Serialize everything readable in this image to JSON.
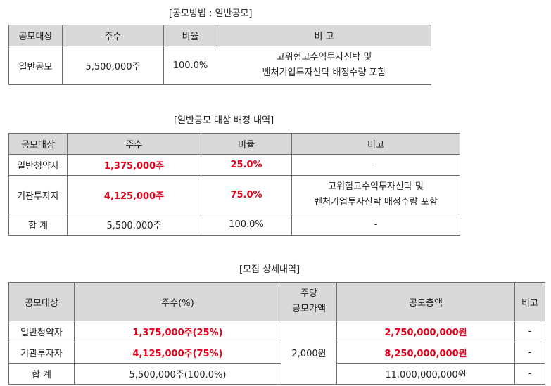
{
  "table1": {
    "caption": "[공모방법 : 일반공모]",
    "headers": [
      "공모대상",
      "주수",
      "비율",
      "비 고"
    ],
    "row": {
      "target": "일반공모",
      "shares": "5,500,000주",
      "ratio": "100.0%",
      "note_line1": "고위험고수익투자신탁 및",
      "note_line2": "벤처기업투자신탁 배정수량 포함"
    }
  },
  "table2": {
    "caption": "[일반공모 대상 배정 내역]",
    "headers": [
      "공모대상",
      "주수",
      "비율",
      "비고"
    ],
    "rows": [
      {
        "target": "일반청약자",
        "shares": "1,375,000주",
        "ratio": "25.0%",
        "note": "-"
      },
      {
        "target": "기관투자자",
        "shares": "4,125,000주",
        "ratio": "75.0%",
        "note_line1": "고위험고수익투자신탁 및",
        "note_line2": "벤처기업투자신탁 배정수량 포함"
      },
      {
        "target": "합 계",
        "shares": "5,500,000주",
        "ratio": "100.0%",
        "note": "-"
      }
    ]
  },
  "table3": {
    "caption": "[모집 상세내역]",
    "headers": {
      "target": "공모대상",
      "shares": "주수(%)",
      "price_line1": "주당",
      "price_line2": "공모가액",
      "total": "공모총액",
      "note": "비고"
    },
    "price": "2,000원",
    "rows": [
      {
        "target": "일반청약자",
        "shares": "1,375,000주(25%)",
        "total": "2,750,000,000원",
        "note": "-"
      },
      {
        "target": "기관투자자",
        "shares": "4,125,000주(75%)",
        "total": "8,250,000,000원",
        "note": "-"
      },
      {
        "target": "합 계",
        "shares": "5,500,000주(100.0%)",
        "total": "11,000,000,000원",
        "note": "-"
      }
    ]
  },
  "colors": {
    "header_bg": "#d9d9d9",
    "highlight": "#e2001a",
    "border": "#6e6e6e"
  }
}
